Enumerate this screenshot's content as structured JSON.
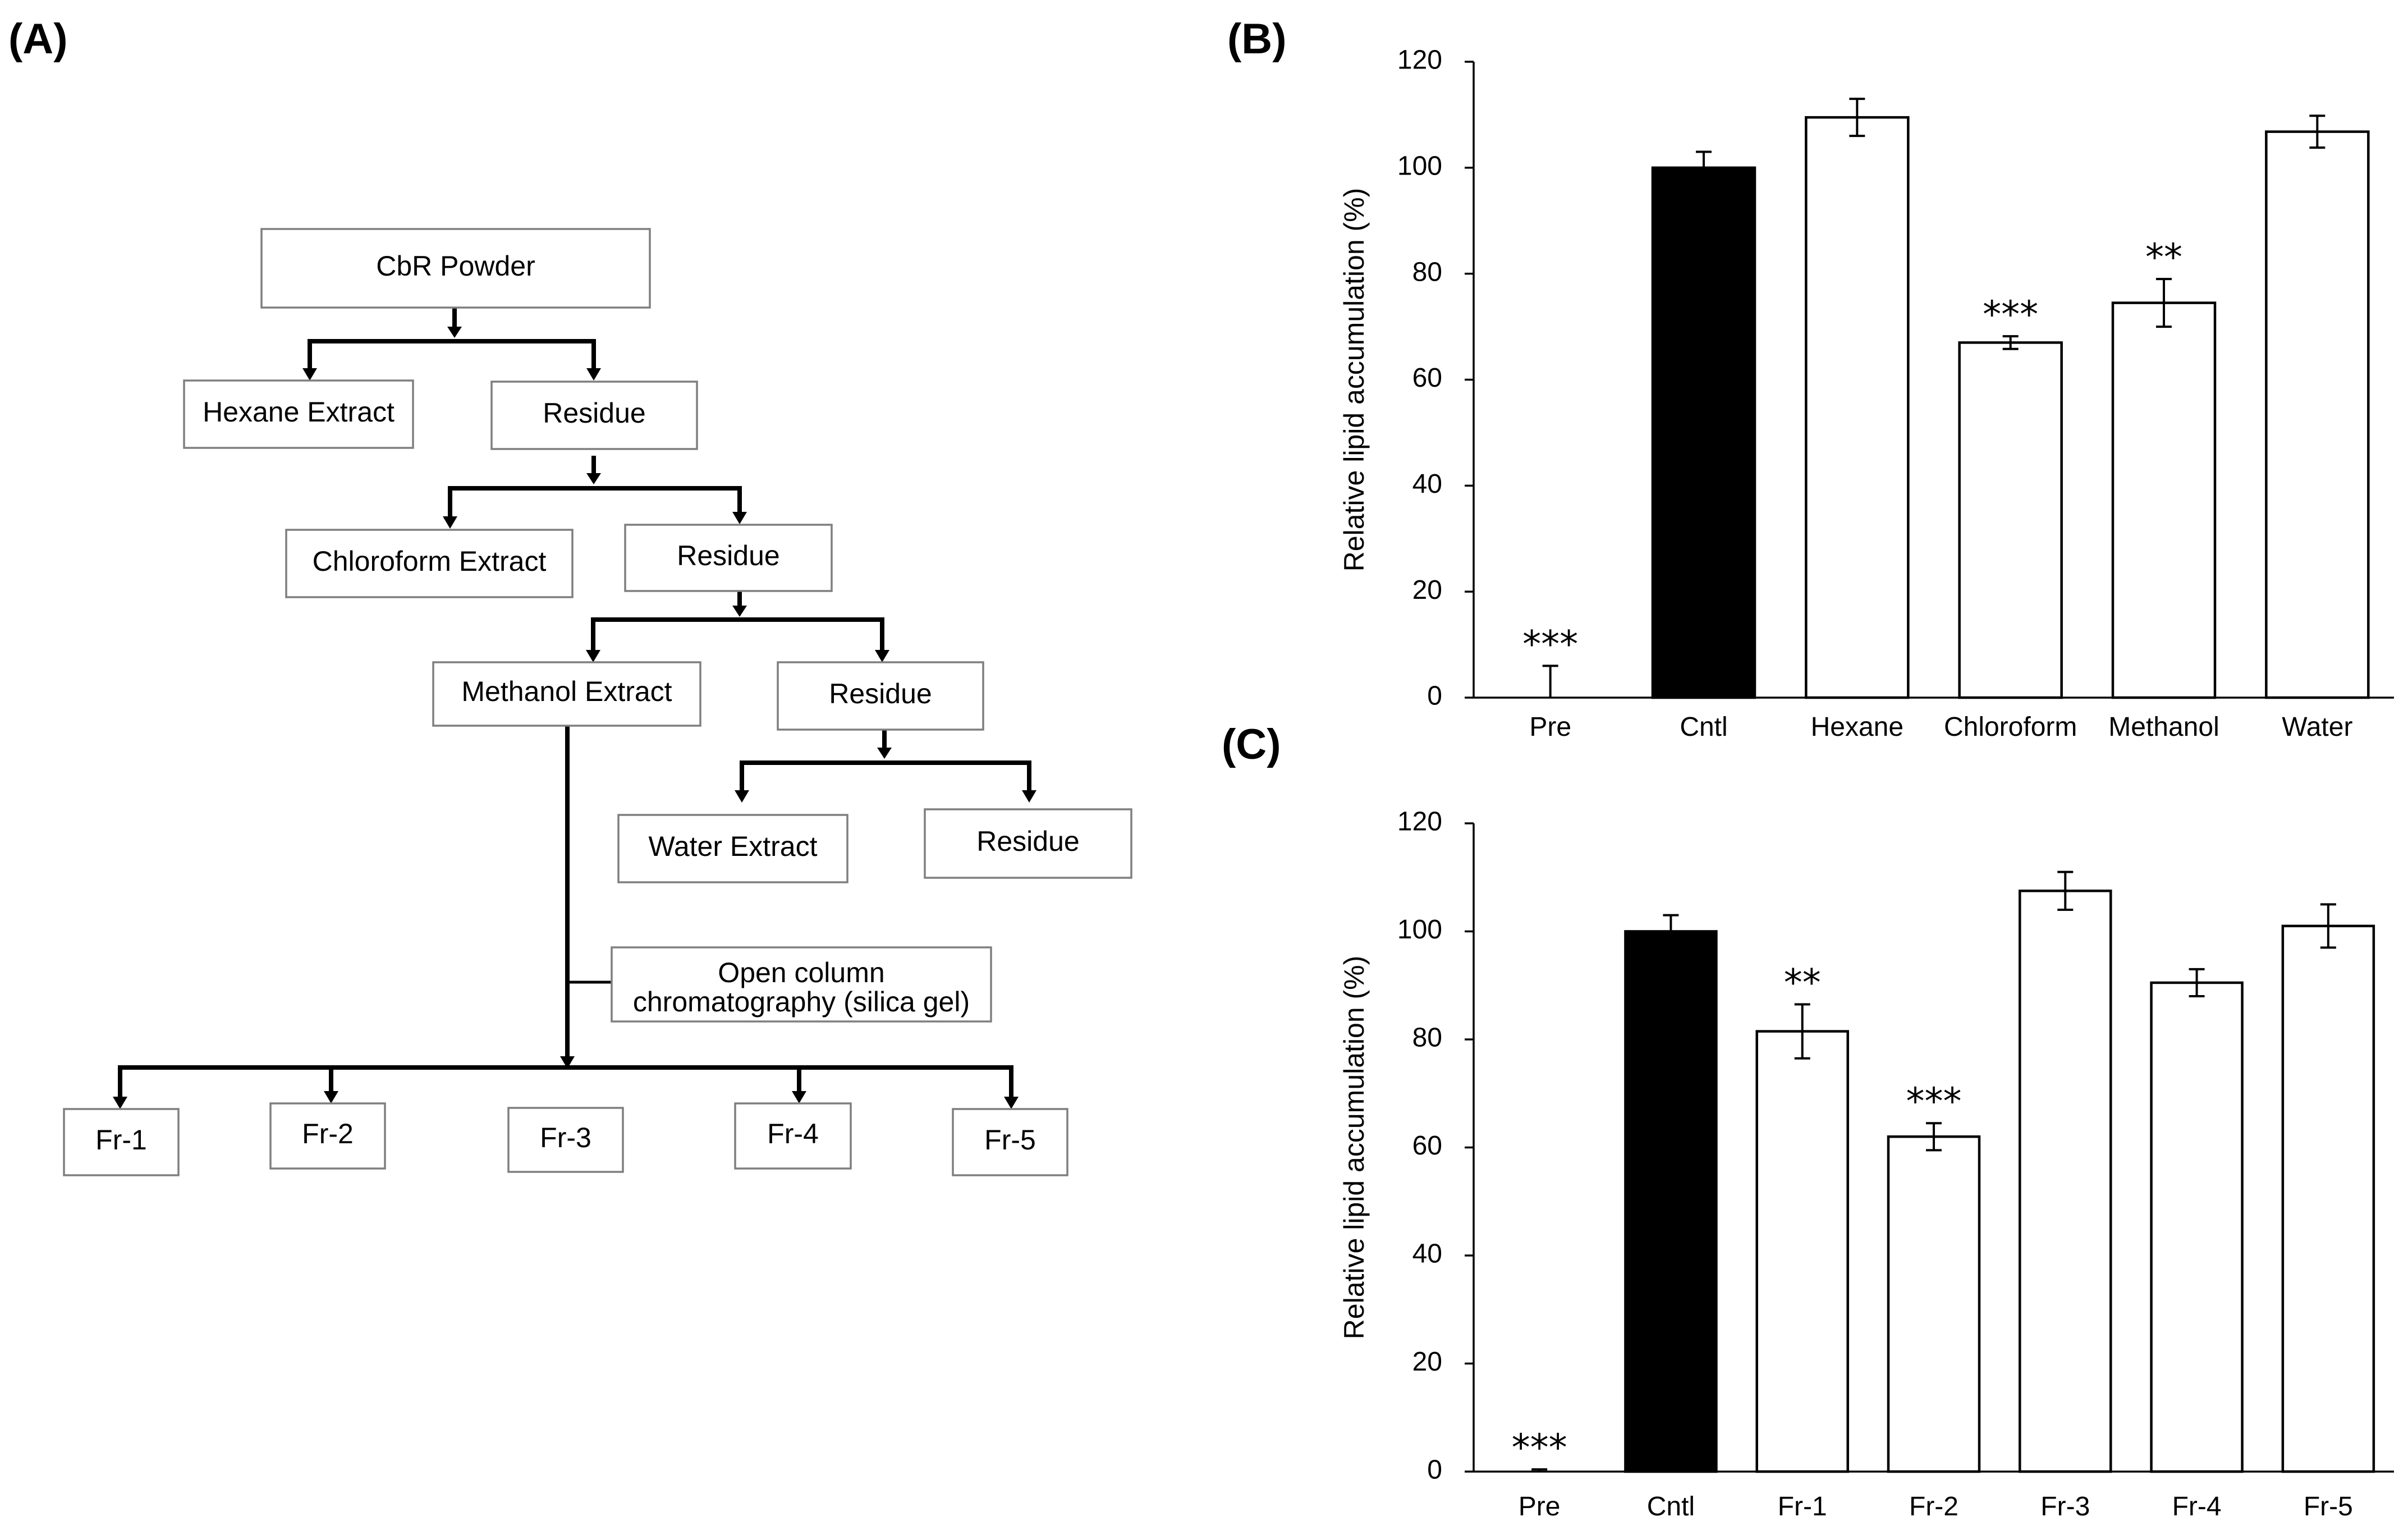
{
  "panel_labels": {
    "a": "(A)",
    "b": "(B)",
    "c": "(C)"
  },
  "flowchart": {
    "root": "CbR Powder",
    "hexane_extract": "Hexane Extract",
    "residue_1": "Residue",
    "chloroform_extract": "Chloroform Extract",
    "residue_2": "Residue",
    "methanol_extract": "Methanol Extract",
    "residue_3": "Residue",
    "water_extract": "Water Extract",
    "residue_4": "Residue",
    "column_line1": "Open column",
    "column_line2": "chromatography (silica gel)",
    "fractions": [
      "Fr-1",
      "Fr-2",
      "Fr-3",
      "Fr-4",
      "Fr-5"
    ]
  },
  "chart_data": [
    {
      "type": "bar",
      "panel": "(B)",
      "categories": [
        "Pre",
        "Cntl",
        "Hexane",
        "Chloroform",
        "Methanol",
        "Water"
      ],
      "values": [
        0,
        100,
        109.5,
        67,
        74.5,
        106.8
      ],
      "errors": [
        6,
        3,
        3.5,
        1.2,
        4.5,
        3
      ],
      "fill": [
        "#ffffff",
        "#000000",
        "#ffffff",
        "#ffffff",
        "#ffffff",
        "#ffffff"
      ],
      "significance": [
        "***",
        "",
        "",
        "***",
        "**",
        ""
      ],
      "ylabel": "Relative  lipid accumulation  (%)",
      "xlabel": "",
      "ylim": [
        0,
        120
      ],
      "yticks": [
        0,
        20,
        40,
        60,
        80,
        100,
        120
      ]
    },
    {
      "type": "bar",
      "panel": "(C)",
      "categories": [
        "Pre",
        "Cntl",
        "Fr-1",
        "Fr-2",
        "Fr-3",
        "Fr-4",
        "Fr-5"
      ],
      "values": [
        0,
        100,
        81.5,
        62,
        107.5,
        90.5,
        101
      ],
      "errors": [
        0.4,
        3,
        5,
        2.5,
        3.5,
        2.5,
        4
      ],
      "fill": [
        "#ffffff",
        "#000000",
        "#ffffff",
        "#ffffff",
        "#ffffff",
        "#ffffff",
        "#ffffff"
      ],
      "significance": [
        "***",
        "",
        "**",
        "***",
        "",
        "",
        ""
      ],
      "ylabel": "Relative  lipid accumulation  (%)",
      "xlabel": "",
      "ylim": [
        0,
        120
      ],
      "yticks": [
        0,
        20,
        40,
        60,
        80,
        100,
        120
      ]
    }
  ]
}
